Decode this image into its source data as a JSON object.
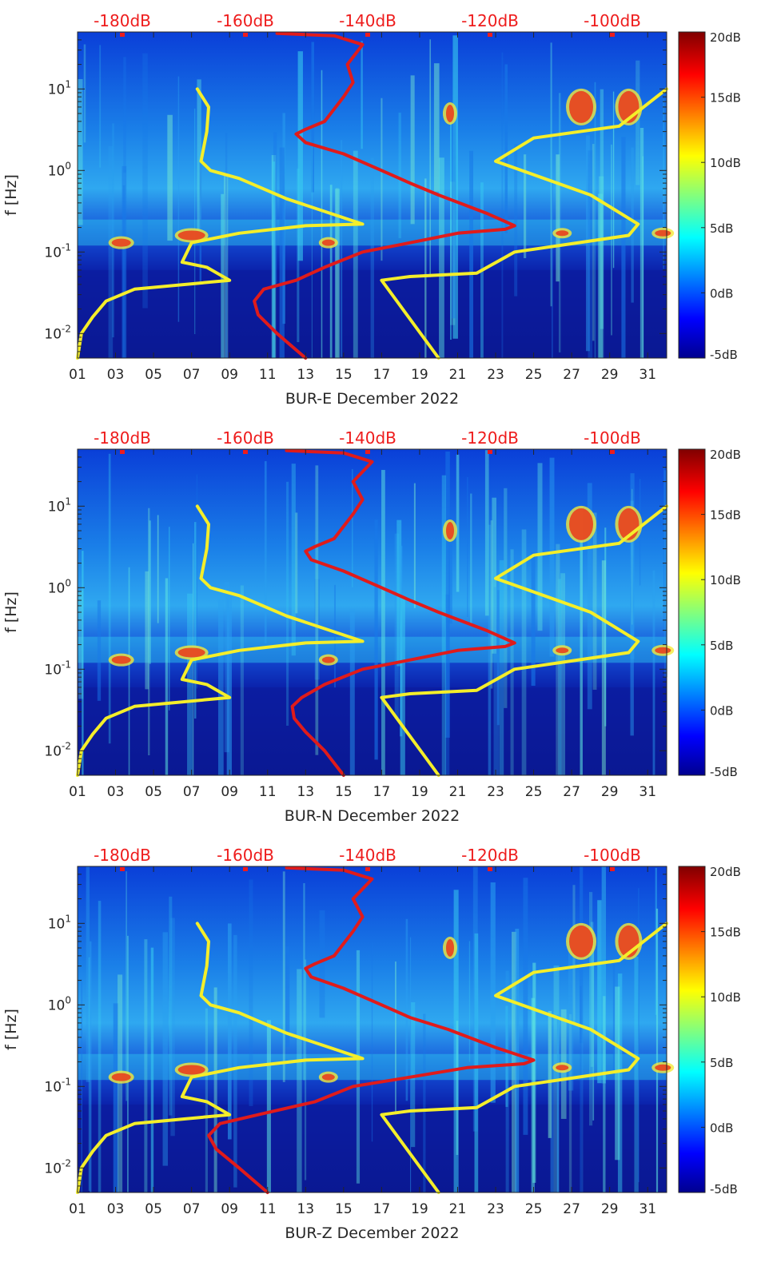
{
  "chart_data": [
    {
      "type": "heatmap",
      "xlabel": "BUR-E December 2022",
      "ylabel": "f [Hz]",
      "x_ticks": [
        "01",
        "03",
        "05",
        "07",
        "09",
        "11",
        "13",
        "15",
        "17",
        "19",
        "21",
        "23",
        "25",
        "27",
        "29",
        "31"
      ],
      "y_ticks": [
        "10-2",
        "10-1",
        "100",
        "101"
      ],
      "y_scale": "log",
      "ylim": [
        0.005,
        50
      ],
      "xlim": [
        1,
        32
      ],
      "top_axis_ticks": [
        "-180dB",
        "-160dB",
        "-140dB",
        "-120dB",
        "-100dB"
      ],
      "colorbar_ticks": [
        "20dB",
        "15dB",
        "10dB",
        "5dB",
        "0dB",
        "-5dB"
      ],
      "colorbar_range": [
        -5,
        20
      ],
      "series": [
        {
          "color": "#f4ee2a",
          "x": [
            1.0,
            1.2,
            1.8,
            2.5,
            4.0,
            9.0,
            7.8,
            6.5,
            7.0,
            9.5,
            13.0,
            16.0,
            12.0,
            9.5,
            8.0,
            7.5,
            7.8,
            7.9,
            7.3
          ],
          "y": [
            0.005,
            0.01,
            0.016,
            0.025,
            0.035,
            0.045,
            0.065,
            0.075,
            0.13,
            0.17,
            0.21,
            0.22,
            0.45,
            0.8,
            1.0,
            1.3,
            3.0,
            6.0,
            10.0
          ]
        },
        {
          "color": "#f4ee2a",
          "x": [
            20.0,
            17.0,
            18.5,
            22.0,
            24.0,
            30.0,
            30.5,
            28.0,
            23.0,
            25.0,
            29.5,
            32.0
          ],
          "y": [
            0.005,
            0.045,
            0.05,
            0.055,
            0.1,
            0.16,
            0.22,
            0.5,
            1.3,
            2.5,
            3.5,
            10.0
          ]
        },
        {
          "color": "#e01b1b",
          "x": [
            13.0,
            11.5,
            10.5,
            10.3,
            10.8,
            12.5,
            14.0,
            16.0,
            18.5,
            21.0,
            23.5,
            24.0,
            22.5,
            20.0,
            18.5,
            17.0,
            15.0,
            13.0,
            12.5,
            13.0,
            14.0,
            15.0,
            15.5,
            15.2,
            16.0,
            14.5,
            11.5
          ],
          "y": [
            0.005,
            0.01,
            0.017,
            0.025,
            0.035,
            0.045,
            0.065,
            0.1,
            0.13,
            0.17,
            0.19,
            0.21,
            0.3,
            0.5,
            0.7,
            1.0,
            1.6,
            2.2,
            2.8,
            3.2,
            4.0,
            8.0,
            12.0,
            20.0,
            35.0,
            45.0,
            48.0
          ]
        }
      ]
    },
    {
      "type": "heatmap",
      "xlabel": "BUR-N December 2022",
      "ylabel": "f [Hz]",
      "x_ticks": [
        "01",
        "03",
        "05",
        "07",
        "09",
        "11",
        "13",
        "15",
        "17",
        "19",
        "21",
        "23",
        "25",
        "27",
        "29",
        "31"
      ],
      "y_ticks": [
        "10-2",
        "10-1",
        "100",
        "101"
      ],
      "y_scale": "log",
      "ylim": [
        0.005,
        50
      ],
      "xlim": [
        1,
        32
      ],
      "top_axis_ticks": [
        "-180dB",
        "-160dB",
        "-140dB",
        "-120dB",
        "-100dB"
      ],
      "colorbar_ticks": [
        "20dB",
        "15dB",
        "10dB",
        "5dB",
        "0dB",
        "-5dB"
      ],
      "colorbar_range": [
        -5,
        20
      ],
      "series": [
        {
          "color": "#f4ee2a",
          "x": [
            1.0,
            1.2,
            1.8,
            2.5,
            4.0,
            9.0,
            7.8,
            6.5,
            7.0,
            9.5,
            13.0,
            16.0,
            12.0,
            9.5,
            8.0,
            7.5,
            7.8,
            7.9,
            7.3
          ],
          "y": [
            0.005,
            0.01,
            0.016,
            0.025,
            0.035,
            0.045,
            0.065,
            0.075,
            0.13,
            0.17,
            0.21,
            0.22,
            0.45,
            0.8,
            1.0,
            1.3,
            3.0,
            6.0,
            10.0
          ]
        },
        {
          "color": "#f4ee2a",
          "x": [
            20.0,
            17.0,
            18.5,
            22.0,
            24.0,
            30.0,
            30.5,
            28.0,
            23.0,
            25.0,
            29.5,
            32.0
          ],
          "y": [
            0.005,
            0.045,
            0.05,
            0.055,
            0.1,
            0.16,
            0.22,
            0.5,
            1.3,
            2.5,
            3.5,
            10.0
          ]
        },
        {
          "color": "#e01b1b",
          "x": [
            15.0,
            14.0,
            13.0,
            12.4,
            12.3,
            12.8,
            14.0,
            16.0,
            18.5,
            21.0,
            23.5,
            24.0,
            22.5,
            20.0,
            18.5,
            17.0,
            15.0,
            13.3,
            13.0,
            13.5,
            14.5,
            15.5,
            16.0,
            15.5,
            16.5,
            15.0,
            12.0
          ],
          "y": [
            0.005,
            0.01,
            0.017,
            0.025,
            0.035,
            0.045,
            0.065,
            0.1,
            0.13,
            0.17,
            0.19,
            0.21,
            0.3,
            0.5,
            0.7,
            1.0,
            1.6,
            2.2,
            2.8,
            3.2,
            4.0,
            8.0,
            12.0,
            20.0,
            35.0,
            45.0,
            48.0
          ]
        }
      ]
    },
    {
      "type": "heatmap",
      "xlabel": "BUR-Z December 2022",
      "ylabel": "f [Hz]",
      "x_ticks": [
        "01",
        "03",
        "05",
        "07",
        "09",
        "11",
        "13",
        "15",
        "17",
        "19",
        "21",
        "23",
        "25",
        "27",
        "29",
        "31"
      ],
      "y_ticks": [
        "10-2",
        "10-1",
        "100",
        "101"
      ],
      "y_scale": "log",
      "ylim": [
        0.005,
        50
      ],
      "xlim": [
        1,
        32
      ],
      "top_axis_ticks": [
        "-180dB",
        "-160dB",
        "-140dB",
        "-120dB",
        "-100dB"
      ],
      "colorbar_ticks": [
        "20dB",
        "15dB",
        "10dB",
        "5dB",
        "0dB",
        "-5dB"
      ],
      "colorbar_range": [
        -5,
        20
      ],
      "series": [
        {
          "color": "#f4ee2a",
          "x": [
            1.0,
            1.2,
            1.8,
            2.5,
            4.0,
            9.0,
            7.8,
            6.5,
            7.0,
            9.5,
            13.0,
            16.0,
            12.0,
            9.5,
            8.0,
            7.5,
            7.8,
            7.9,
            7.3
          ],
          "y": [
            0.005,
            0.01,
            0.016,
            0.025,
            0.035,
            0.045,
            0.065,
            0.075,
            0.13,
            0.17,
            0.21,
            0.22,
            0.45,
            0.8,
            1.0,
            1.3,
            3.0,
            6.0,
            10.0
          ]
        },
        {
          "color": "#f4ee2a",
          "x": [
            20.0,
            17.0,
            18.5,
            22.0,
            24.0,
            30.0,
            30.5,
            28.0,
            23.0,
            25.0,
            29.5,
            32.0
          ],
          "y": [
            0.005,
            0.045,
            0.05,
            0.055,
            0.1,
            0.16,
            0.22,
            0.5,
            1.3,
            2.5,
            3.5,
            10.0
          ]
        },
        {
          "color": "#e01b1b",
          "x": [
            11.0,
            9.5,
            8.3,
            7.9,
            8.5,
            10.5,
            13.5,
            15.5,
            18.5,
            21.5,
            24.5,
            25.0,
            23.0,
            20.5,
            18.5,
            17.0,
            15.0,
            13.3,
            13.0,
            13.5,
            14.5,
            15.5,
            16.0,
            15.5,
            16.5,
            15.0,
            12.0
          ],
          "y": [
            0.005,
            0.01,
            0.017,
            0.025,
            0.035,
            0.045,
            0.065,
            0.1,
            0.13,
            0.17,
            0.19,
            0.21,
            0.3,
            0.5,
            0.7,
            1.0,
            1.6,
            2.2,
            2.8,
            3.2,
            4.0,
            8.0,
            12.0,
            20.0,
            35.0,
            45.0,
            48.0
          ]
        }
      ]
    }
  ]
}
